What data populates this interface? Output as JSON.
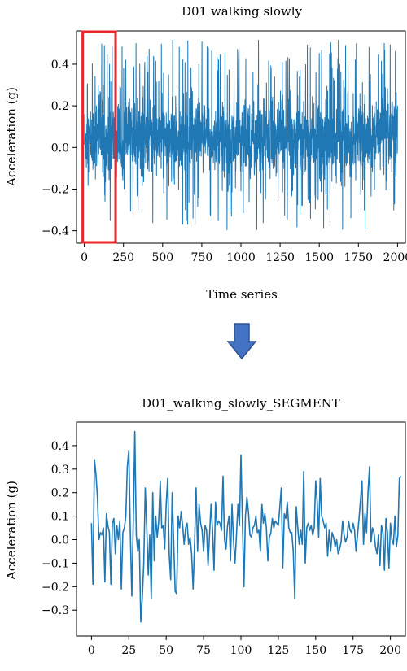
{
  "chart_data": [
    {
      "type": "line",
      "title": "D01 walking slowly",
      "xlabel": "Time series",
      "ylabel": "Acceleration (g)",
      "xlim": [
        -50,
        2050
      ],
      "ylim": [
        -0.46,
        0.56
      ],
      "xticks": [
        0,
        250,
        500,
        750,
        1000,
        1250,
        1500,
        1750,
        2000
      ],
      "yticks": [
        -0.4,
        -0.2,
        0.0,
        0.2,
        0.4
      ],
      "x_range": [
        0,
        2000
      ],
      "y_range": [
        -0.41,
        0.52
      ],
      "series_color": "#1f77b4",
      "highlight": {
        "x_range": [
          0,
          210
        ],
        "color": "#e8262b"
      }
    },
    {
      "type": "line",
      "title": "D01_walking_slowly_SEGMENT",
      "xlabel": "",
      "ylabel": "Acceleration (g)",
      "xlim": [
        -10,
        210
      ],
      "ylim": [
        -0.41,
        0.5
      ],
      "xticks": [
        0,
        25,
        50,
        75,
        100,
        125,
        150,
        175,
        200
      ],
      "yticks": [
        -0.3,
        -0.2,
        -0.1,
        0.0,
        0.1,
        0.2,
        0.3,
        0.4
      ],
      "series_color": "#1f77b4",
      "x_start": 0,
      "values": [
        0.07,
        -0.19,
        0.34,
        0.28,
        0.18,
        0.0,
        0.03,
        0.02,
        0.05,
        -0.18,
        0.11,
        0.06,
        0.03,
        -0.19,
        0.07,
        0.09,
        -0.06,
        0.06,
        0.0,
        0.08,
        -0.21,
        0.03,
        0.05,
        0.1,
        0.31,
        0.38,
        0.03,
        -0.24,
        0.08,
        0.46,
        0.02,
        -0.05,
        0.0,
        -0.35,
        -0.25,
        -0.1,
        0.22,
        0.05,
        -0.15,
        0.02,
        -0.25,
        0.2,
        -0.09,
        0.1,
        0.01,
        0.08,
        0.25,
        0.05,
        0.06,
        -0.04,
        0.15,
        0.26,
        -0.06,
        -0.17,
        0.2,
        -0.01,
        -0.22,
        -0.23,
        0.1,
        0.05,
        0.12,
        0.06,
        -0.02,
        0.05,
        0.07,
        -0.02,
        0.01,
        -0.06,
        -0.21,
        -0.01,
        0.22,
        -0.05,
        0.15,
        0.07,
        0.04,
        -0.05,
        0.06,
        0.04,
        -0.11,
        0.02,
        0.15,
        0.04,
        -0.13,
        0.16,
        0.06,
        0.08,
        0.07,
        0.04,
        0.27,
        0.0,
        -0.04,
        0.06,
        0.1,
        -0.09,
        0.15,
        0.0,
        -0.1,
        0.02,
        0.15,
        0.06,
        0.36,
        0.07,
        -0.2,
        0.1,
        0.18,
        0.12,
        0.02,
        0.01,
        0.05,
        0.06,
        0.1,
        0.03,
        0.04,
        -0.05,
        0.15,
        0.07,
        0.11,
        0.05,
        -0.09,
        0.01,
        0.03,
        0.09,
        0.05,
        0.08,
        0.07,
        0.06,
        0.14,
        0.22,
        -0.12,
        0.11,
        0.09,
        0.16,
        0.05,
        0.03,
        0.03,
        -0.05,
        -0.25,
        0.14,
        0.05,
        -0.02,
        0.04,
        -0.02,
        0.29,
        -0.1,
        0.05,
        0.07,
        0.04,
        0.06,
        0.02,
        0.05,
        0.25,
        0.16,
        0.01,
        0.26,
        0.1,
        0.08,
        0.05,
        0.07,
        -0.07,
        0.04,
        -0.05,
        0.03,
        0.01,
        -0.03,
        0.0,
        -0.06,
        -0.04,
        -0.01,
        0.08,
        0.02,
        -0.01,
        0.01,
        0.08,
        0.04,
        0.03,
        0.07,
        0.04,
        -0.05,
        0.02,
        0.09,
        0.17,
        0.25,
        -0.02,
        0.11,
        0.03,
        0.2,
        0.31,
        -0.01,
        0.05,
        0.03,
        -0.03,
        -0.06,
        0.02,
        -0.11,
        0.06,
        0.03,
        -0.13,
        0.09,
        0.03,
        -0.12,
        0.07,
        0.0,
        -0.02,
        0.1,
        -0.03,
        0.02,
        0.26,
        0.27
      ]
    }
  ],
  "arrow": {
    "color": "#4472c4",
    "edge_color": "#2f528f"
  }
}
